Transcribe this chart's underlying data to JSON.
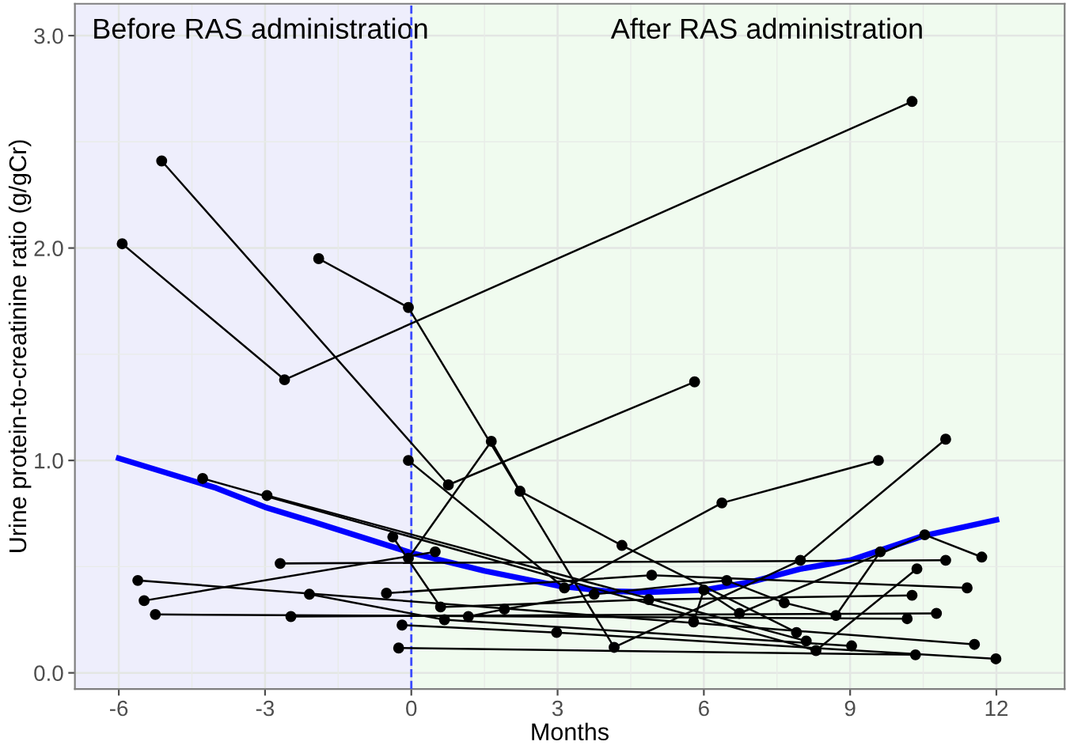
{
  "chart_data": {
    "type": "line",
    "xlabel": "Months",
    "ylabel": "Urine protein-to-creatinine ratio (g/gCr)",
    "xlim": [
      -6.9,
      13.4
    ],
    "ylim": [
      -0.076,
      3.15
    ],
    "xticks": [
      -6,
      -3,
      0,
      3,
      6,
      9,
      12
    ],
    "yticks": [
      {
        "value": 0,
        "label": "0.0"
      },
      {
        "value": 1,
        "label": "1.0"
      },
      {
        "value": 2,
        "label": "2.0"
      },
      {
        "value": 3,
        "label": "3.0"
      }
    ],
    "grid": true,
    "marker": "circle",
    "line_style": "solid",
    "bands": [
      {
        "axis": "x",
        "from": -6.9,
        "to": 0,
        "label": "Before RAS administration",
        "color": "#eeeefc"
      },
      {
        "axis": "x",
        "from": 0,
        "to": 13.4,
        "label": "After RAS administration",
        "color": "#f0fbef"
      }
    ],
    "ref_lines": [
      {
        "axis": "x",
        "value": 0,
        "color": "#3b4bff",
        "line_style": "dashed"
      }
    ],
    "series": [
      {
        "color": "#000000",
        "x": [
          -5.93,
          -2.6,
          10.27
        ],
        "values": [
          2.02,
          1.38,
          2.69
        ]
      },
      {
        "color": "#000000",
        "x": [
          -5.12,
          0.76,
          5.81
        ],
        "values": [
          2.41,
          0.885,
          1.37
        ]
      },
      {
        "color": "#000000",
        "x": [
          -1.9,
          -0.06,
          4.16,
          7.98,
          10.96
        ],
        "values": [
          1.95,
          1.72,
          0.12,
          0.53,
          1.1
        ]
      },
      {
        "color": "#000000",
        "x": [
          -0.06,
          3.14,
          6.37,
          9.58
        ],
        "values": [
          1.0,
          0.4,
          0.8,
          1.0
        ]
      },
      {
        "color": "#000000",
        "x": [
          -0.06,
          1.64,
          2.23,
          4.32,
          7.9
        ],
        "values": [
          0.54,
          1.09,
          0.855,
          0.6,
          0.19
        ]
      },
      {
        "color": "#000000",
        "x": [
          -4.28,
          8.3,
          10.37
        ],
        "values": [
          0.915,
          0.105,
          0.49
        ]
      },
      {
        "color": "#000000",
        "x": [
          -2.96,
          8.1
        ],
        "values": [
          0.835,
          0.15
        ]
      },
      {
        "color": "#000000",
        "x": [
          -5.48,
          0.49
        ],
        "values": [
          0.34,
          0.57
        ]
      },
      {
        "color": "#000000",
        "x": [
          -5.61,
          11.55
        ],
        "values": [
          0.435,
          0.134
        ]
      },
      {
        "color": "#000000",
        "x": [
          -5.25,
          10.17
        ],
        "values": [
          0.275,
          0.255
        ]
      },
      {
        "color": "#000000",
        "x": [
          -2.47,
          10.77
        ],
        "values": [
          0.265,
          0.28
        ]
      },
      {
        "color": "#000000",
        "x": [
          -2.09,
          0.68,
          9.03
        ],
        "values": [
          0.37,
          0.25,
          0.127
        ]
      },
      {
        "color": "#000000",
        "x": [
          -2.69,
          10.96
        ],
        "values": [
          0.515,
          0.53
        ]
      },
      {
        "color": "#000000",
        "x": [
          -0.51,
          4.93,
          11.4
        ],
        "values": [
          0.375,
          0.46,
          0.4
        ]
      },
      {
        "color": "#000000",
        "x": [
          -0.19,
          2.98,
          11.99
        ],
        "values": [
          0.225,
          0.19,
          0.066
        ]
      },
      {
        "color": "#000000",
        "x": [
          -0.26,
          10.34
        ],
        "values": [
          0.117,
          0.085
        ]
      },
      {
        "color": "#000000",
        "x": [
          -0.38,
          0.6,
          4.87,
          10.27
        ],
        "values": [
          0.64,
          0.31,
          0.345,
          0.365
        ]
      },
      {
        "color": "#000000",
        "x": [
          1.17,
          1.91,
          3.75,
          6.47,
          7.65,
          8.71,
          9.62
        ],
        "values": [
          0.265,
          0.3,
          0.37,
          0.435,
          0.33,
          0.27,
          0.57
        ]
      },
      {
        "color": "#000000",
        "x": [
          5.79,
          6.0,
          6.73,
          10.53,
          11.7
        ],
        "values": [
          0.24,
          0.39,
          0.28,
          0.65,
          0.545
        ]
      },
      {
        "color": "#0000ff",
        "marker": "none",
        "x": [
          -6,
          -4,
          -3,
          -2,
          0,
          1.5,
          3,
          4,
          4.9,
          6,
          7,
          8,
          9,
          10.5,
          12
        ],
        "values": [
          1.01,
          0.87,
          0.78,
          0.71,
          0.565,
          0.48,
          0.41,
          0.385,
          0.38,
          0.39,
          0.43,
          0.49,
          0.53,
          0.645,
          0.72
        ]
      }
    ]
  }
}
